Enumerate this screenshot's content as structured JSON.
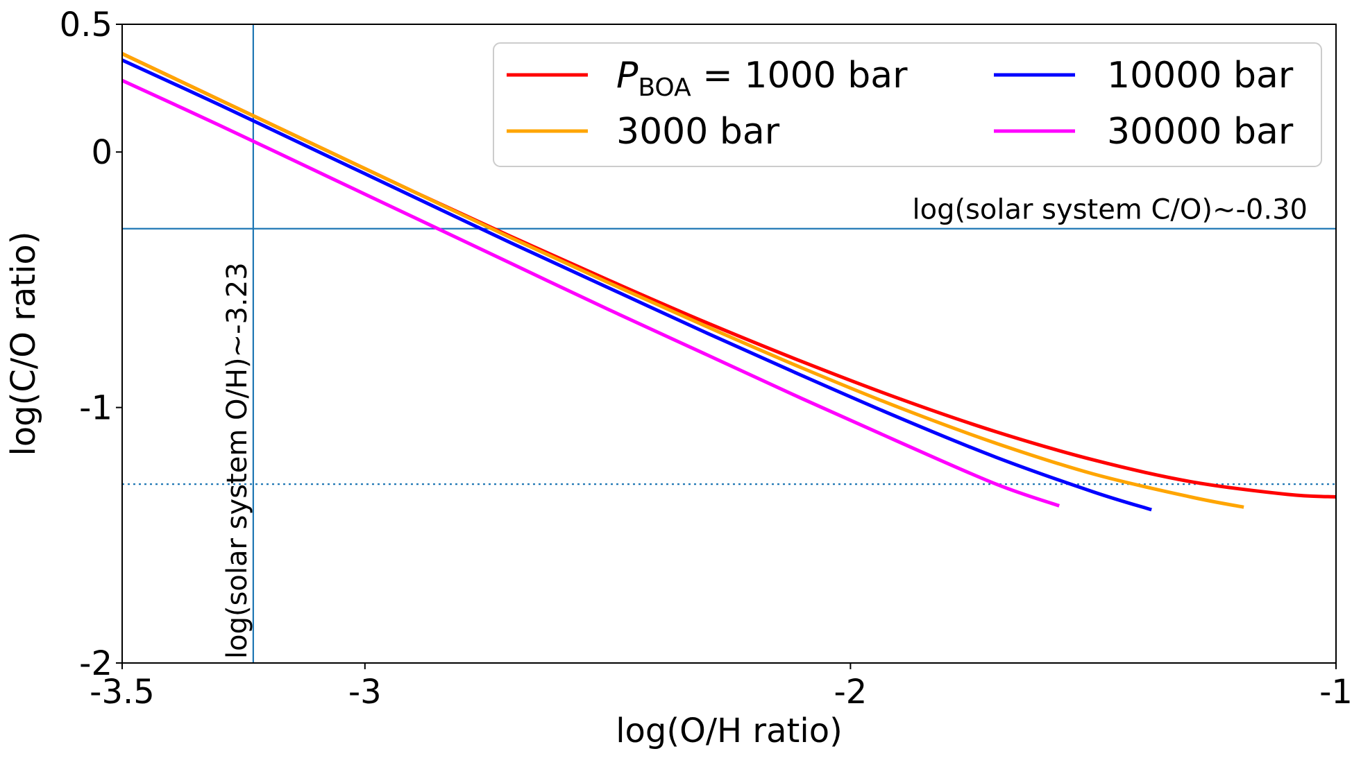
{
  "chart_data": {
    "type": "line",
    "xlabel": "log(O/H ratio)",
    "ylabel": "log(C/O ratio)",
    "xlim": [
      -3.5,
      -1
    ],
    "ylim": [
      -2,
      0.5
    ],
    "x_ticks": [
      -3.5,
      -3,
      -2,
      -1
    ],
    "x_tick_labels": [
      "-3.5",
      "-3",
      "-2",
      "-1"
    ],
    "y_ticks": [
      0.5,
      0,
      -1,
      -2
    ],
    "y_tick_labels": [
      "0.5",
      "0",
      "-1",
      "-2"
    ],
    "grid": false,
    "legend_position": "top-right",
    "legend_columns": 2,
    "series": [
      {
        "name": "1000 bar",
        "legend_label_prefix": "P",
        "legend_label_sub": "BOA",
        "legend_label_rest": "= 1000 bar",
        "color": "#ff0000",
        "x": [
          -3.5,
          -3.3,
          -3.1,
          -2.9,
          -2.7,
          -2.5,
          -2.3,
          -2.1,
          -1.9,
          -1.7,
          -1.5,
          -1.3,
          -1.1,
          -1.0
        ],
        "y": [
          0.385,
          0.205,
          0.025,
          -0.155,
          -0.33,
          -0.5,
          -0.665,
          -0.82,
          -0.965,
          -1.095,
          -1.205,
          -1.29,
          -1.34,
          -1.35
        ]
      },
      {
        "name": "3000 bar",
        "color": "#ffa500",
        "x": [
          -3.5,
          -3.3,
          -3.1,
          -2.9,
          -2.7,
          -2.5,
          -2.3,
          -2.1,
          -1.9,
          -1.7,
          -1.5,
          -1.3,
          -1.19
        ],
        "y": [
          0.385,
          0.205,
          0.025,
          -0.155,
          -0.335,
          -0.51,
          -0.68,
          -0.845,
          -1.0,
          -1.14,
          -1.26,
          -1.35,
          -1.39
        ]
      },
      {
        "name": "10000 bar",
        "color": "#0000ff",
        "x": [
          -3.5,
          -3.3,
          -3.1,
          -2.9,
          -2.7,
          -2.5,
          -2.3,
          -2.1,
          -1.9,
          -1.7,
          -1.5,
          -1.38
        ],
        "y": [
          0.36,
          0.185,
          0.005,
          -0.175,
          -0.355,
          -0.53,
          -0.705,
          -0.875,
          -1.04,
          -1.195,
          -1.33,
          -1.4
        ]
      },
      {
        "name": "30000 bar",
        "color": "#ff00ff",
        "x": [
          -3.5,
          -3.3,
          -3.1,
          -2.9,
          -2.7,
          -2.5,
          -2.3,
          -2.1,
          -1.9,
          -1.7,
          -1.57
        ],
        "y": [
          0.28,
          0.105,
          -0.075,
          -0.255,
          -0.435,
          -0.615,
          -0.79,
          -0.965,
          -1.135,
          -1.3,
          -1.385
        ]
      }
    ],
    "reference_lines": [
      {
        "orientation": "vertical",
        "value": -3.23,
        "color": "#1f77b4",
        "style": "solid",
        "label": "log(solar system O/H)~-3.23"
      },
      {
        "orientation": "horizontal",
        "value": -0.3,
        "color": "#1f77b4",
        "style": "solid",
        "label": "log(solar system C/O)~-0.30"
      },
      {
        "orientation": "horizontal",
        "value": -1.3,
        "color": "#1f77b4",
        "style": "dotted",
        "label": ""
      }
    ]
  }
}
